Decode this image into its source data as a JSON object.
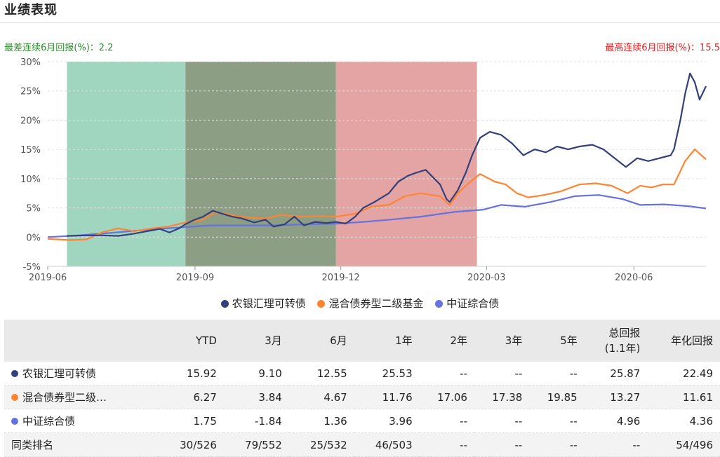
{
  "header": {
    "title": "业绩表现",
    "worst_label": "最差连续6月回报(%)：2.2",
    "best_label": "最高连续6月回报(%)：15.5"
  },
  "colors": {
    "fund": "#33407a",
    "category": "#ff8432",
    "index": "#6672dd",
    "band_green": "#a0d6c0",
    "band_olive": "#8c9e84",
    "band_red": "#e4a4a4"
  },
  "chart_data": {
    "type": "line",
    "x_ticks": [
      "2019-06",
      "2019-09",
      "2019-12",
      "2020-03",
      "2020-06"
    ],
    "y_ticks": [
      "30%",
      "25%",
      "20%",
      "15%",
      "10%",
      "5%",
      "0%",
      "-5%"
    ],
    "ylim": [
      -5,
      30
    ],
    "xlim": [
      "2019-06-01",
      "2020-07-16"
    ],
    "shaded_periods": [
      {
        "from": "2019-06-13",
        "to": "2019-08-26",
        "color": "#a0d6c0"
      },
      {
        "from": "2019-08-26",
        "to": "2019-11-28",
        "color": "#8c9e84"
      },
      {
        "from": "2019-11-28",
        "to": "2020-02-24",
        "color": "#e4a4a4"
      }
    ],
    "series": [
      {
        "name": "农银汇理可转债",
        "color": "#33407a",
        "points": [
          [
            "2019-06-13",
            0.2
          ],
          [
            "2019-06-25",
            0.3
          ],
          [
            "2019-07-05",
            0.3
          ],
          [
            "2019-07-15",
            0.2
          ],
          [
            "2019-07-25",
            0.6
          ],
          [
            "2019-08-02",
            1.0
          ],
          [
            "2019-08-10",
            1.4
          ],
          [
            "2019-08-16",
            0.8
          ],
          [
            "2019-08-22",
            1.5
          ],
          [
            "2019-08-26",
            2.2
          ],
          [
            "2019-08-31",
            2.9
          ],
          [
            "2019-09-06",
            3.5
          ],
          [
            "2019-09-12",
            4.5
          ],
          [
            "2019-09-18",
            4.0
          ],
          [
            "2019-09-24",
            3.5
          ],
          [
            "2019-09-30",
            3.2
          ],
          [
            "2019-10-08",
            2.5
          ],
          [
            "2019-10-15",
            3.0
          ],
          [
            "2019-10-20",
            1.8
          ],
          [
            "2019-10-27",
            2.2
          ],
          [
            "2019-11-02",
            3.5
          ],
          [
            "2019-11-08",
            2.0
          ],
          [
            "2019-11-15",
            2.6
          ],
          [
            "2019-11-22",
            2.4
          ],
          [
            "2019-11-28",
            2.6
          ],
          [
            "2019-12-04",
            2.3
          ],
          [
            "2019-12-10",
            3.5
          ],
          [
            "2019-12-15",
            5.0
          ],
          [
            "2019-12-22",
            6.0
          ],
          [
            "2019-12-31",
            7.5
          ],
          [
            "2020-01-06",
            9.5
          ],
          [
            "2020-01-12",
            10.5
          ],
          [
            "2020-01-17",
            11.0
          ],
          [
            "2020-01-23",
            11.5
          ],
          [
            "2020-02-01",
            9.0
          ],
          [
            "2020-02-05",
            6.5
          ],
          [
            "2020-02-07",
            6.0
          ],
          [
            "2020-02-12",
            8.0
          ],
          [
            "2020-02-17",
            11.0
          ],
          [
            "2020-02-21",
            14.0
          ],
          [
            "2020-02-26",
            17.0
          ],
          [
            "2020-03-03",
            18.0
          ],
          [
            "2020-03-10",
            17.5
          ],
          [
            "2020-03-17",
            16.0
          ],
          [
            "2020-03-24",
            14.0
          ],
          [
            "2020-03-31",
            15.0
          ],
          [
            "2020-04-07",
            14.5
          ],
          [
            "2020-04-14",
            15.5
          ],
          [
            "2020-04-21",
            15.0
          ],
          [
            "2020-04-28",
            15.5
          ],
          [
            "2020-05-06",
            15.8
          ],
          [
            "2020-05-13",
            15.0
          ],
          [
            "2020-05-20",
            13.5
          ],
          [
            "2020-05-27",
            12.0
          ],
          [
            "2020-06-03",
            13.5
          ],
          [
            "2020-06-10",
            13.0
          ],
          [
            "2020-06-17",
            13.5
          ],
          [
            "2020-06-24",
            14.0
          ],
          [
            "2020-06-26",
            15.0
          ],
          [
            "2020-06-30",
            20.0
          ],
          [
            "2020-07-03",
            24.5
          ],
          [
            "2020-07-06",
            28.0
          ],
          [
            "2020-07-09",
            26.5
          ],
          [
            "2020-07-12",
            23.5
          ],
          [
            "2020-07-16",
            25.8
          ]
        ]
      },
      {
        "name": "混合债券型二级基金",
        "color": "#ff8432",
        "points": [
          [
            "2019-06-01",
            -0.3
          ],
          [
            "2019-06-15",
            -0.5
          ],
          [
            "2019-06-25",
            -0.4
          ],
          [
            "2019-07-05",
            0.8
          ],
          [
            "2019-07-15",
            1.5
          ],
          [
            "2019-07-25",
            1.0
          ],
          [
            "2019-08-05",
            1.5
          ],
          [
            "2019-08-15",
            1.8
          ],
          [
            "2019-08-26",
            2.5
          ],
          [
            "2019-09-06",
            3.0
          ],
          [
            "2019-09-13",
            4.2
          ],
          [
            "2019-09-20",
            4.0
          ],
          [
            "2019-09-27",
            3.6
          ],
          [
            "2019-10-08",
            3.3
          ],
          [
            "2019-10-15",
            3.2
          ],
          [
            "2019-10-25",
            3.8
          ],
          [
            "2019-11-05",
            3.5
          ],
          [
            "2019-11-15",
            3.6
          ],
          [
            "2019-11-28",
            3.5
          ],
          [
            "2019-12-10",
            4.0
          ],
          [
            "2019-12-20",
            5.2
          ],
          [
            "2019-12-31",
            5.5
          ],
          [
            "2020-01-10",
            7.0
          ],
          [
            "2020-01-20",
            7.5
          ],
          [
            "2020-02-01",
            7.0
          ],
          [
            "2020-02-07",
            5.5
          ],
          [
            "2020-02-12",
            7.5
          ],
          [
            "2020-02-20",
            9.5
          ],
          [
            "2020-02-26",
            10.8
          ],
          [
            "2020-03-06",
            9.5
          ],
          [
            "2020-03-13",
            9.0
          ],
          [
            "2020-03-20",
            7.5
          ],
          [
            "2020-03-27",
            6.8
          ],
          [
            "2020-04-06",
            7.2
          ],
          [
            "2020-04-16",
            7.8
          ],
          [
            "2020-04-28",
            9.0
          ],
          [
            "2020-05-08",
            9.2
          ],
          [
            "2020-05-18",
            8.8
          ],
          [
            "2020-05-28",
            7.5
          ],
          [
            "2020-06-05",
            8.8
          ],
          [
            "2020-06-12",
            8.5
          ],
          [
            "2020-06-19",
            9.0
          ],
          [
            "2020-06-26",
            9.0
          ],
          [
            "2020-07-03",
            13.0
          ],
          [
            "2020-07-09",
            15.0
          ],
          [
            "2020-07-16",
            13.3
          ]
        ]
      },
      {
        "name": "中证综合债",
        "color": "#6672dd",
        "points": [
          [
            "2019-06-01",
            0.0
          ],
          [
            "2019-06-20",
            0.3
          ],
          [
            "2019-07-10",
            0.7
          ],
          [
            "2019-07-30",
            1.2
          ],
          [
            "2019-08-20",
            1.6
          ],
          [
            "2019-09-10",
            2.0
          ],
          [
            "2019-10-01",
            2.0
          ],
          [
            "2019-10-20",
            2.0
          ],
          [
            "2019-11-10",
            2.2
          ],
          [
            "2019-11-28",
            2.3
          ],
          [
            "2019-12-15",
            2.6
          ],
          [
            "2020-01-01",
            3.0
          ],
          [
            "2020-01-20",
            3.5
          ],
          [
            "2020-02-10",
            4.3
          ],
          [
            "2020-02-28",
            4.7
          ],
          [
            "2020-03-10",
            5.5
          ],
          [
            "2020-03-25",
            5.2
          ],
          [
            "2020-04-10",
            6.0
          ],
          [
            "2020-04-25",
            7.0
          ],
          [
            "2020-05-10",
            7.2
          ],
          [
            "2020-05-25",
            6.5
          ],
          [
            "2020-06-05",
            5.5
          ],
          [
            "2020-06-20",
            5.6
          ],
          [
            "2020-07-05",
            5.3
          ],
          [
            "2020-07-16",
            4.9
          ]
        ]
      }
    ],
    "legend": [
      "农银汇理可转债",
      "混合债券型二级基金",
      "中证综合债"
    ]
  },
  "table": {
    "headers": [
      "",
      "YTD",
      "3月",
      "6月",
      "1年",
      "2年",
      "3年",
      "5年",
      "总回报\n(1.1年)",
      "年化回报"
    ],
    "header_total_line1": "总回报",
    "header_total_line2": "(1.1年)",
    "rows": [
      {
        "name": "农银汇理可转债",
        "color": "#33407a",
        "values": [
          "15.92",
          "9.10",
          "12.55",
          "25.53",
          "--",
          "--",
          "--",
          "25.87",
          "22.49"
        ]
      },
      {
        "name": "混合债券型二级…",
        "color": "#ff8432",
        "values": [
          "6.27",
          "3.84",
          "4.67",
          "11.76",
          "17.06",
          "17.38",
          "19.85",
          "13.27",
          "11.61"
        ]
      },
      {
        "name": "中证综合债",
        "color": "#6672dd",
        "values": [
          "1.75",
          "-1.84",
          "1.36",
          "3.96",
          "--",
          "--",
          "--",
          "4.96",
          "4.36"
        ]
      },
      {
        "name": "同类排名",
        "color": "",
        "values": [
          "30/526",
          "79/552",
          "25/532",
          "46/503",
          "--",
          "--",
          "--",
          "--",
          "54/496"
        ]
      }
    ]
  }
}
